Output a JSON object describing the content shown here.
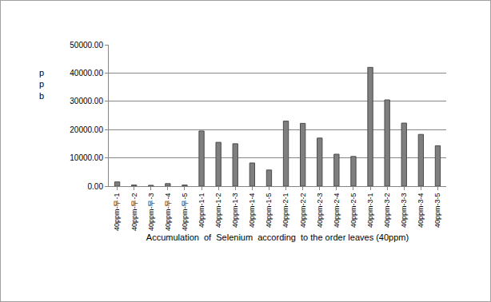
{
  "chart_data": {
    "type": "bar",
    "x_label": "Accumulation  of  Selenium  according  to the order leaves (40ppm)",
    "y_label": "ppb",
    "categories": [
      "40ppm-무-1",
      "40ppm-무-2",
      "40ppm-무-3",
      "40ppm-무-4",
      "40ppm-무-5",
      "40ppm-1-1",
      "40ppm-1-2",
      "40ppm-1-3",
      "40ppm-1-4",
      "40ppm-1-5",
      "40ppm-2-1",
      "40ppm-2-2",
      "40ppm-2-3",
      "40ppm-2-4",
      "40ppm-2-5",
      "40ppm-3-1",
      "40ppm-3-2",
      "40ppm-3-3",
      "40ppm-3-4",
      "40ppm-3-5"
    ],
    "values": [
      1500,
      400,
      300,
      900,
      400,
      19500,
      15500,
      15000,
      8200,
      5700,
      23000,
      22200,
      17000,
      11300,
      10500,
      42000,
      30500,
      22300,
      18300,
      14300
    ],
    "color": "#7f7f7f",
    "ylim": [
      0,
      50000
    ],
    "yticks": [
      {
        "value": 0,
        "label": "0.00"
      },
      {
        "value": 10000,
        "label": "10000.00"
      },
      {
        "value": 20000,
        "label": "20000.00"
      },
      {
        "value": 30000,
        "label": "30000.00"
      },
      {
        "value": 40000,
        "label": "40000.00"
      },
      {
        "value": 50000,
        "label": "50000.00"
      }
    ],
    "grid": true
  }
}
